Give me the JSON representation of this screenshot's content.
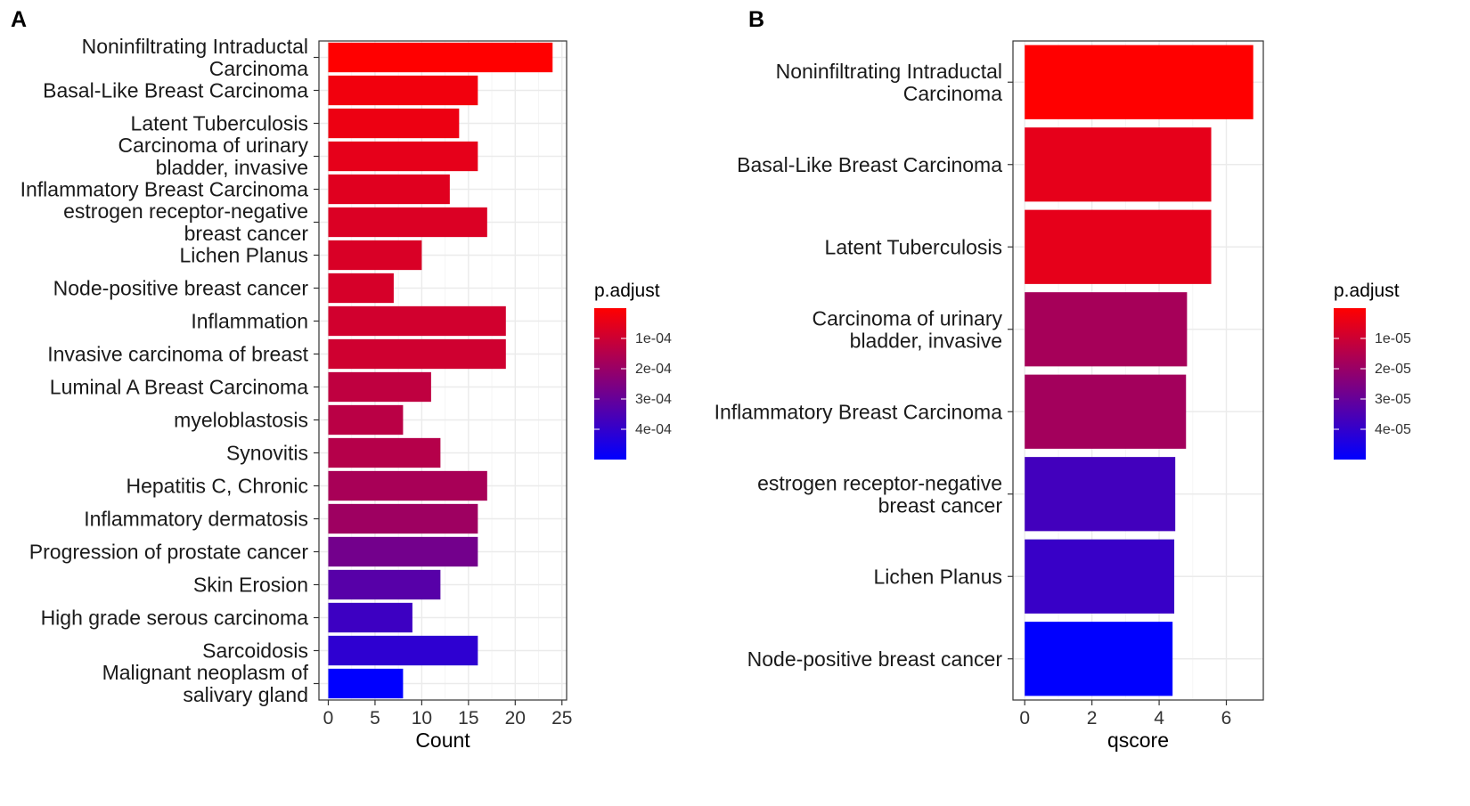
{
  "chart_data": [
    {
      "panel": "A",
      "type": "bar",
      "orientation": "horizontal",
      "categories": [
        "Noninfiltrating Intraductal\nCarcinoma",
        "Basal-Like Breast Carcinoma",
        "Latent Tuberculosis",
        "Carcinoma of urinary\nbladder, invasive",
        "Inflammatory Breast Carcinoma",
        "estrogen receptor-negative\nbreast cancer",
        "Lichen Planus",
        "Node-positive breast cancer",
        "Inflammation",
        "Invasive carcinoma of breast",
        "Luminal A Breast Carcinoma",
        "myeloblastosis",
        "Synovitis",
        "Hepatitis C, Chronic",
        "Inflammatory dermatosis",
        "Progression of prostate cancer",
        "Skin Erosion",
        "High grade serous carcinoma",
        "Sarcoidosis",
        "Malignant neoplasm of\nsalivary gland"
      ],
      "values": [
        24,
        16,
        14,
        16,
        13,
        17,
        10,
        7,
        19,
        19,
        11,
        8,
        12,
        17,
        16,
        16,
        12,
        9,
        16,
        8
      ],
      "color_fraction": [
        0.0,
        0.05,
        0.07,
        0.1,
        0.12,
        0.14,
        0.15,
        0.16,
        0.18,
        0.19,
        0.25,
        0.27,
        0.29,
        0.34,
        0.38,
        0.55,
        0.66,
        0.76,
        0.82,
        1.0
      ],
      "xlabel": "Count",
      "xlim": [
        -1,
        25.5
      ],
      "xticks": [
        0,
        5,
        10,
        15,
        20,
        25
      ],
      "grid": true,
      "legend": {
        "title": "p.adjust",
        "labels": [
          "1e-04",
          "2e-04",
          "3e-04",
          "4e-04"
        ],
        "label_fraction": [
          0.2,
          0.4,
          0.6,
          0.8
        ],
        "placement": "right"
      }
    },
    {
      "panel": "B",
      "type": "bar",
      "orientation": "horizontal",
      "categories": [
        "Noninfiltrating Intraductal\nCarcinoma",
        "Basal-Like Breast Carcinoma",
        "Latent Tuberculosis",
        "Carcinoma of urinary\nbladder, invasive",
        "Inflammatory Breast Carcinoma",
        "estrogen receptor-negative\nbreast cancer",
        "Lichen Planus",
        "Node-positive breast cancer"
      ],
      "values": [
        6.8,
        5.55,
        5.55,
        4.83,
        4.8,
        4.48,
        4.45,
        4.4
      ],
      "color_fraction": [
        0.0,
        0.1,
        0.1,
        0.35,
        0.36,
        0.74,
        0.78,
        1.0
      ],
      "xlabel": "qscore",
      "xlim": [
        -0.35,
        7.1
      ],
      "xticks": [
        0,
        2,
        4,
        6
      ],
      "grid": true,
      "legend": {
        "title": "p.adjust",
        "labels": [
          "1e-05",
          "2e-05",
          "3e-05",
          "4e-05"
        ],
        "label_fraction": [
          0.2,
          0.4,
          0.6,
          0.8
        ],
        "placement": "right"
      }
    }
  ],
  "colors": {
    "low_padj": "#FF0000",
    "high_padj": "#0000FF",
    "panel_border": "#333333",
    "grid_major": "#ebebeb",
    "grid_minor": "#f5f5f5"
  }
}
